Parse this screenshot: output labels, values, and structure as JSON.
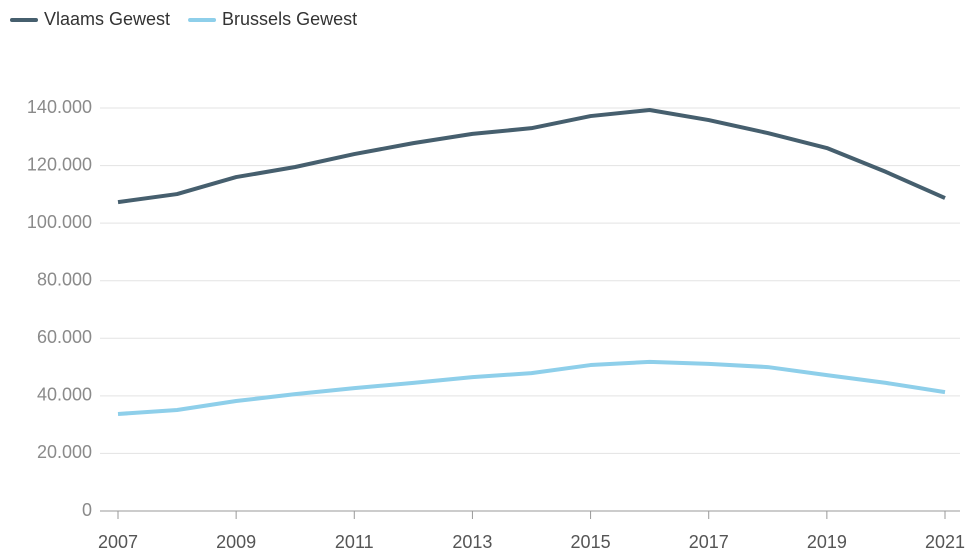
{
  "chart_data": {
    "type": "line",
    "x": [
      2007,
      2008,
      2009,
      2010,
      2011,
      2012,
      2013,
      2014,
      2015,
      2016,
      2017,
      2018,
      2019,
      2020,
      2021
    ],
    "series": [
      {
        "name": "Vlaams Gewest",
        "color": "#465f6e",
        "values": [
          107300,
          110100,
          116000,
          119500,
          124000,
          127800,
          131000,
          133000,
          137200,
          139300,
          135800,
          131300,
          126100,
          117800,
          108700
        ]
      },
      {
        "name": "Brussels Gewest",
        "color": "#8ecfea",
        "values": [
          33700,
          35100,
          38200,
          40600,
          42700,
          44500,
          46500,
          47900,
          50700,
          51800,
          51100,
          50000,
          47200,
          44500,
          41300
        ]
      }
    ],
    "xlim": [
      2007,
      2021
    ],
    "xticks": [
      2007,
      2009,
      2011,
      2013,
      2015,
      2017,
      2019,
      2021
    ],
    "ylim": [
      0,
      140000
    ],
    "yticks": [
      0,
      {
        "value": 20000,
        "label": "20.000"
      },
      {
        "value": 40000,
        "label": "40.000"
      },
      {
        "value": 60000,
        "label": "60.000"
      },
      {
        "value": 80000,
        "label": "80.000"
      },
      {
        "value": 100000,
        "label": "100.000"
      },
      {
        "value": 120000,
        "label": "120.000"
      },
      {
        "value": 140000,
        "label": "140.000"
      }
    ],
    "grid": true,
    "legend": "top-left"
  }
}
